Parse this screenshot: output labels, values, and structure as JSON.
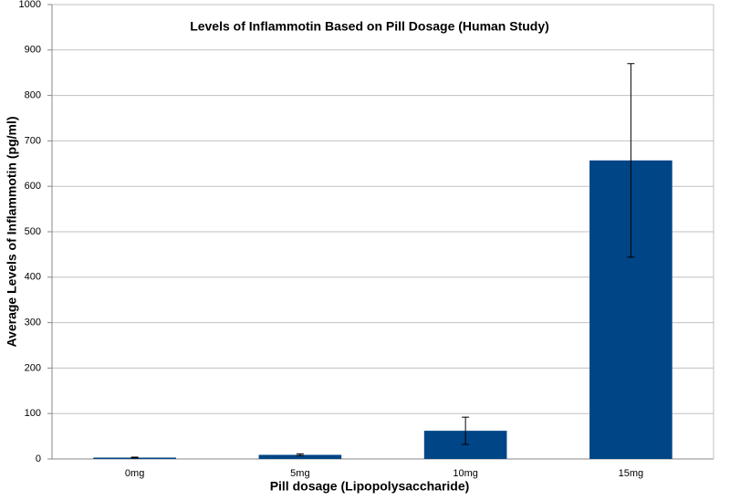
{
  "chart_data": {
    "type": "bar",
    "title": "Levels of Inflammotin Based on Pill Dosage (Human Study)",
    "x_label": "Pill dosage (Lipopolysaccharide)",
    "y_label": "Average Levels of Inflammotin (pg/ml)",
    "categories": [
      "0mg",
      "5mg",
      "10mg",
      "15mg"
    ],
    "values": [
      3,
      9,
      62,
      657
    ],
    "errors": [
      1,
      2,
      30,
      213
    ],
    "color": "#004586",
    "ylim": [
      0,
      1000
    ],
    "yticks": [
      0,
      100,
      200,
      300,
      400,
      500,
      600,
      700,
      800,
      900,
      1000
    ],
    "grid": true
  }
}
